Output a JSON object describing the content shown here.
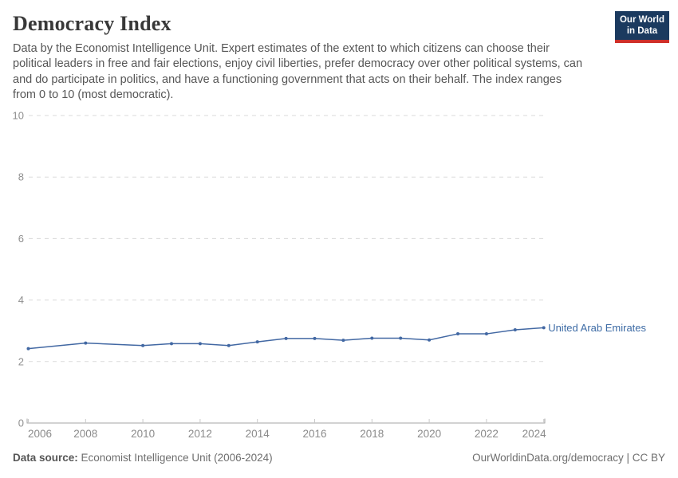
{
  "header": {
    "title": "Democracy Index",
    "subtitle_lines": [
      "Data by the Economist Intelligence Unit. Expert estimates of the extent to which citizens can choose their",
      "political leaders in free and fair elections, enjoy civil liberties, prefer democracy over other political systems, can",
      "and do participate in politics, and have a functioning government that acts on their behalf. The index ranges",
      "from 0 to 10 (most democratic)."
    ],
    "logo": {
      "line1": "Our World",
      "line2": "in Data",
      "bg_color": "#1b3a5f",
      "accent_color": "#cf2f29"
    }
  },
  "chart_data": {
    "type": "line",
    "title": "Democracy Index",
    "xlabel": "",
    "ylabel": "",
    "ylim": [
      0,
      10
    ],
    "yticks": [
      0,
      2,
      4,
      6,
      8,
      10
    ],
    "xticks": [
      2006,
      2008,
      2010,
      2012,
      2014,
      2016,
      2018,
      2020,
      2022,
      2024
    ],
    "xlim": [
      2006,
      2024
    ],
    "grid": "horizontal-dashed",
    "legend_position": "end-of-line",
    "x": [
      2006,
      2008,
      2010,
      2011,
      2012,
      2013,
      2014,
      2015,
      2016,
      2017,
      2018,
      2019,
      2020,
      2021,
      2022,
      2023,
      2024
    ],
    "series": [
      {
        "name": "United Arab Emirates",
        "color": "#4268a3",
        "label_color": "#3d6ba5",
        "values": [
          2.42,
          2.6,
          2.52,
          2.58,
          2.58,
          2.52,
          2.64,
          2.75,
          2.75,
          2.69,
          2.76,
          2.76,
          2.7,
          2.9,
          2.9,
          3.03,
          3.1
        ]
      }
    ]
  },
  "footer": {
    "source_label": "Data source:",
    "source_value": " Economist Intelligence Unit (2006-2024)",
    "credit": "OurWorldinData.org/democracy | CC BY"
  }
}
